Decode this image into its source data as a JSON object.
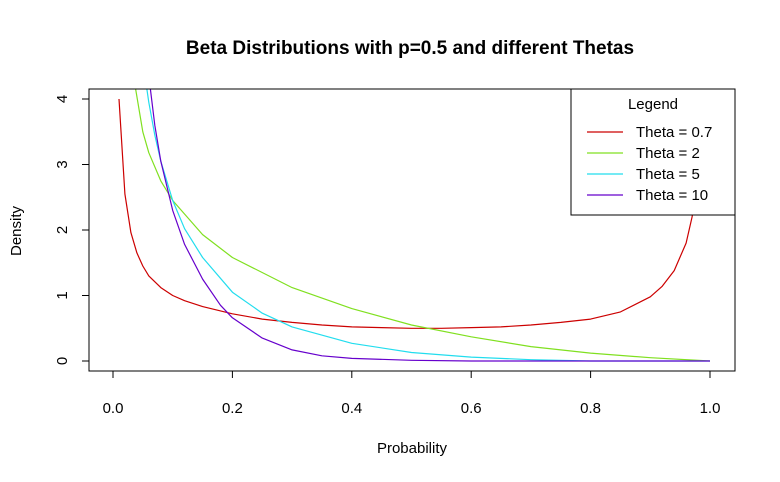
{
  "chart_data": {
    "type": "line",
    "title": "Beta Distributions with p=0.5 and different Thetas",
    "xlabel": "Probability",
    "ylabel": "Density",
    "xlim": [
      0,
      1
    ],
    "ylim": [
      0,
      4
    ],
    "x_ticks": [
      "0.0",
      "0.2",
      "0.4",
      "0.6",
      "0.8",
      "1.0"
    ],
    "y_ticks": [
      "0",
      "1",
      "2",
      "3",
      "4"
    ],
    "grid": false,
    "legend": {
      "title": "Legend",
      "position": "top-right"
    },
    "series": [
      {
        "name": "Theta = 0.7",
        "color": "#cc0000",
        "x": [
          0.01,
          0.02,
          0.03,
          0.04,
          0.05,
          0.06,
          0.08,
          0.1,
          0.12,
          0.15,
          0.2,
          0.25,
          0.3,
          0.35,
          0.4,
          0.45,
          0.5,
          0.55,
          0.6,
          0.65,
          0.7,
          0.75,
          0.8,
          0.85,
          0.9,
          0.92,
          0.94,
          0.96,
          0.97,
          0.98,
          0.99
        ],
        "y": [
          4.0,
          2.55,
          1.96,
          1.65,
          1.45,
          1.3,
          1.12,
          1.0,
          0.92,
          0.83,
          0.72,
          0.64,
          0.59,
          0.55,
          0.52,
          0.51,
          0.5,
          0.5,
          0.51,
          0.52,
          0.55,
          0.59,
          0.64,
          0.75,
          0.98,
          1.14,
          1.38,
          1.8,
          2.2,
          2.85,
          4.0
        ]
      },
      {
        "name": "Theta = 2",
        "color": "#80e020",
        "x": [
          0.037,
          0.05,
          0.06,
          0.08,
          0.1,
          0.15,
          0.2,
          0.3,
          0.4,
          0.5,
          0.6,
          0.7,
          0.8,
          0.9,
          1.0
        ],
        "y": [
          4.2,
          3.5,
          3.18,
          2.75,
          2.45,
          1.93,
          1.58,
          1.12,
          0.8,
          0.55,
          0.37,
          0.22,
          0.12,
          0.05,
          0.0
        ]
      },
      {
        "name": "Theta = 5",
        "color": "#22ddee",
        "x": [
          0.056,
          0.06,
          0.07,
          0.08,
          0.1,
          0.12,
          0.15,
          0.2,
          0.25,
          0.3,
          0.4,
          0.5,
          0.6,
          0.7,
          0.8,
          0.9,
          1.0
        ],
        "y": [
          4.2,
          3.95,
          3.45,
          3.05,
          2.45,
          2.02,
          1.58,
          1.05,
          0.73,
          0.52,
          0.27,
          0.13,
          0.06,
          0.02,
          0.0,
          0.0,
          0.0
        ]
      },
      {
        "name": "Theta = 10",
        "color": "#6600cc",
        "x": [
          0.062,
          0.07,
          0.08,
          0.1,
          0.12,
          0.15,
          0.18,
          0.2,
          0.25,
          0.3,
          0.35,
          0.4,
          0.5,
          0.6,
          0.8,
          1.0
        ],
        "y": [
          4.2,
          3.6,
          3.05,
          2.3,
          1.78,
          1.25,
          0.85,
          0.66,
          0.35,
          0.17,
          0.08,
          0.04,
          0.01,
          0.0,
          0.0,
          0.0
        ]
      }
    ]
  }
}
